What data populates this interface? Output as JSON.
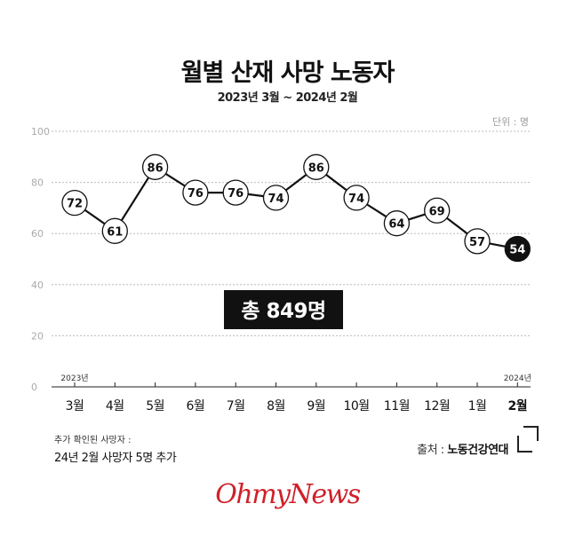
{
  "header": {
    "title": "월별 산재 사망 노동자",
    "subtitle": "2023년 3월 ~ 2024년 2월",
    "unit": "단위 : 명"
  },
  "chart_data": {
    "type": "line",
    "title": "월별 산재 사망 노동자",
    "subtitle": "2023년 3월 ~ 2024년 2월",
    "unit": "명",
    "categories": [
      "3월",
      "4월",
      "5월",
      "6월",
      "7월",
      "8월",
      "9월",
      "10월",
      "11월",
      "12월",
      "1월",
      "2월"
    ],
    "year_markers": [
      {
        "index": 0,
        "label": "2023년"
      },
      {
        "index": 11,
        "label": "2024년"
      }
    ],
    "values": [
      72,
      61,
      86,
      76,
      76,
      74,
      86,
      74,
      64,
      69,
      57,
      54
    ],
    "highlight_index": 11,
    "yticks": [
      0,
      20,
      40,
      60,
      80,
      100
    ],
    "ylim": [
      0,
      100
    ],
    "grid": true,
    "total_label": "총 849명",
    "colors": {
      "line": "#111111",
      "grid": "#bbbbbb",
      "highlight": "#111111",
      "total_bg": "#111111"
    }
  },
  "note": {
    "line1": "추가 확인된 사망자 :",
    "line2": "24년 2월 사망자 5명 추가"
  },
  "source": {
    "prefix": "출처 : ",
    "org": "노동건강연대"
  },
  "brand": "OhmyNews"
}
